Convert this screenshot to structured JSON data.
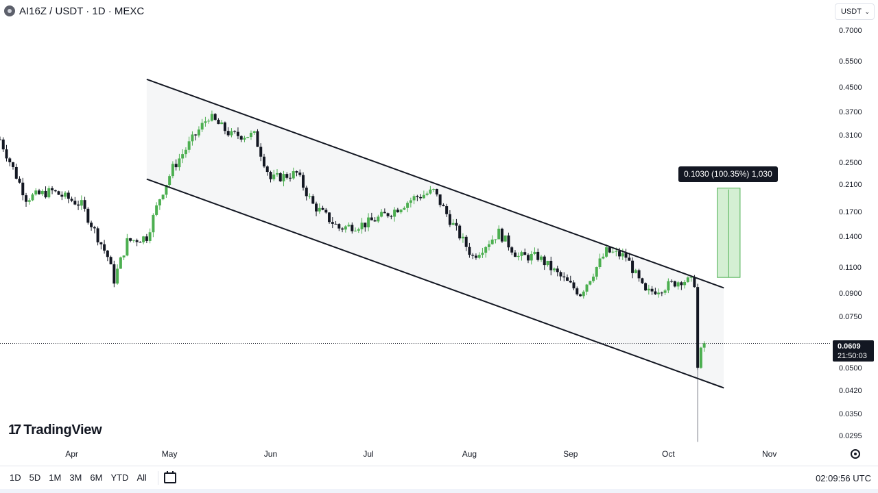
{
  "header": {
    "symbol": "AI16Z",
    "quote": "USDT",
    "interval": "1D",
    "exchange": "MEXC",
    "title": "AI16Z / USDT · 1D · MEXC"
  },
  "currency_selector": {
    "value": "USDT",
    "icon": "chevron-down-icon"
  },
  "price_badge": {
    "price": "0.0609",
    "countdown": "21:50:03"
  },
  "measure_label": "0.1030 (100.35%) 1,030",
  "branding": {
    "name": "TradingView",
    "icon": "tradingview-logo-icon"
  },
  "timeframes": [
    "1D",
    "5D",
    "1M",
    "3M",
    "6M",
    "YTD",
    "All"
  ],
  "clock": "02:09:56 UTC",
  "icons": {
    "goto_date": "calendar-goto-icon",
    "settings": "gear-icon"
  },
  "colors": {
    "up": "#4caf50",
    "down": "#131722",
    "channel_fill": "#f5f6f7",
    "target_box": "#d4efd3",
    "target_border": "#4caf50"
  },
  "chart_data": {
    "type": "candlestick",
    "scale": "log",
    "y_ticks": [
      "0.7000",
      "0.5500",
      "0.4500",
      "0.3700",
      "0.3100",
      "0.2500",
      "0.2100",
      "0.1700",
      "0.1400",
      "0.1100",
      "0.0900",
      "0.0750",
      "0.0500",
      "0.0420",
      "0.0350",
      "0.0295"
    ],
    "x_ticks": [
      "Apr",
      "May",
      "Jun",
      "Jul",
      "Aug",
      "Sep",
      "Oct",
      "Nov"
    ],
    "ylim": [
      0.0275,
      0.76
    ],
    "xlim": [
      "2025-03-10",
      "2025-11-20"
    ],
    "last_price": 0.0609,
    "approx_close_path": [
      [
        "2025-03-10",
        0.3
      ],
      [
        "2025-03-18",
        0.19
      ],
      [
        "2025-03-26",
        0.2
      ],
      [
        "2025-04-04",
        0.18
      ],
      [
        "2025-04-12",
        0.12
      ],
      [
        "2025-04-14",
        0.1
      ],
      [
        "2025-04-18",
        0.135
      ],
      [
        "2025-04-24",
        0.14
      ],
      [
        "2025-04-28",
        0.19
      ],
      [
        "2025-05-02",
        0.24
      ],
      [
        "2025-05-08",
        0.3
      ],
      [
        "2025-05-13",
        0.36
      ],
      [
        "2025-05-20",
        0.31
      ],
      [
        "2025-05-27",
        0.31
      ],
      [
        "2025-06-01",
        0.22
      ],
      [
        "2025-06-09",
        0.23
      ],
      [
        "2025-06-14",
        0.18
      ],
      [
        "2025-06-22",
        0.15
      ],
      [
        "2025-06-30",
        0.155
      ],
      [
        "2025-07-08",
        0.17
      ],
      [
        "2025-07-15",
        0.19
      ],
      [
        "2025-07-21",
        0.2
      ],
      [
        "2025-07-26",
        0.16
      ],
      [
        "2025-08-02",
        0.12
      ],
      [
        "2025-08-10",
        0.145
      ],
      [
        "2025-08-16",
        0.12
      ],
      [
        "2025-08-22",
        0.12
      ],
      [
        "2025-08-30",
        0.1
      ],
      [
        "2025-09-04",
        0.09
      ],
      [
        "2025-09-12",
        0.125
      ],
      [
        "2025-09-18",
        0.12
      ],
      [
        "2025-09-24",
        0.09
      ],
      [
        "2025-09-30",
        0.095
      ],
      [
        "2025-10-05",
        0.1
      ],
      [
        "2025-10-09",
        0.098
      ],
      [
        "2025-10-10",
        0.05
      ],
      [
        "2025-10-11",
        0.057
      ],
      [
        "2025-10-12",
        0.0609
      ]
    ],
    "channel": {
      "upper": [
        [
          "2025-04-24",
          0.48
        ],
        [
          "2025-10-18",
          0.094
        ]
      ],
      "lower": [
        [
          "2025-04-24",
          0.22
        ],
        [
          "2025-10-18",
          0.043
        ]
      ]
    },
    "target_box": {
      "from": [
        "2025-10-16",
        0.102
      ],
      "to": [
        "2025-10-23",
        0.205
      ]
    }
  }
}
